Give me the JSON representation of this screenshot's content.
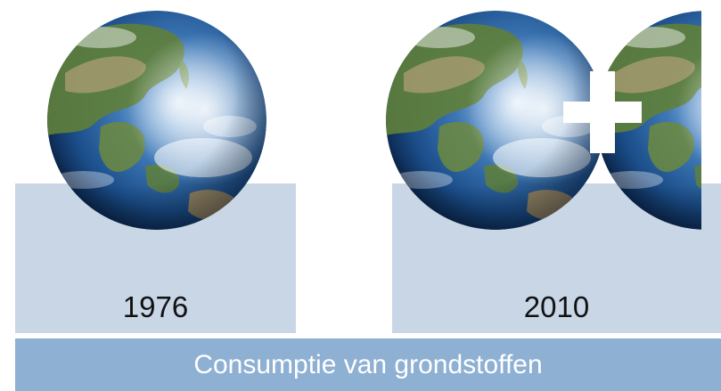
{
  "years": {
    "left": "1976",
    "right": "2010"
  },
  "caption": "Consumptie van grondstoffen",
  "icons": {
    "globe": "earth-globe-icon",
    "plus": "plus-icon"
  },
  "colors": {
    "panel": "#c8d6e6",
    "banner": "#8eb0d3",
    "banner_text": "#ffffff",
    "year_text": "#111111",
    "ocean": "#1d5a9c",
    "land": "#5f7f3a"
  }
}
